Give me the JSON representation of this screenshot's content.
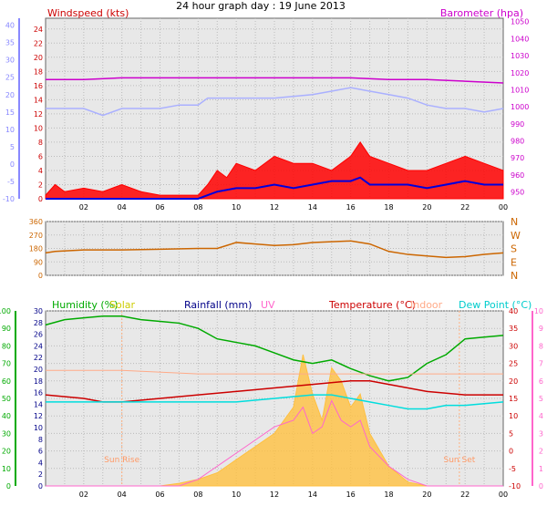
{
  "title": "24 hour graph day : 19 June 2013",
  "x_ticks": [
    "02",
    "04",
    "06",
    "08",
    "10",
    "12",
    "14",
    "16",
    "18",
    "20",
    "22",
    "00"
  ],
  "colors": {
    "wind": "#ff0000",
    "gust_avg": "#0000dd",
    "baro": "#cc00cc",
    "temp_top": "#aab0ff",
    "direction": "#cc6600",
    "humidity": "#00aa00",
    "solar": "#ffc040",
    "rain": "#000088",
    "uv": "#ff66cc",
    "temperature": "#cc0000",
    "indoor": "#ffaa88",
    "dewpoint": "#00dddd",
    "plot_bg": "#e8e8e8"
  },
  "chart_data": [
    {
      "type": "line",
      "panel": "wind-baro",
      "left_axis": {
        "label": "Windspeed (kts)",
        "ticks": [
          24,
          22,
          20,
          18,
          16,
          14,
          12,
          10,
          8,
          6,
          4,
          2,
          0
        ]
      },
      "far_left_axis": {
        "ticks": [
          40,
          35,
          30,
          25,
          20,
          15,
          10,
          5,
          0,
          -5,
          -10
        ]
      },
      "right_axis": {
        "label": "Barometer (hpa)",
        "ticks": [
          1050,
          1040,
          1030,
          1020,
          1010,
          1000,
          990,
          980,
          970,
          960,
          950
        ]
      },
      "series": [
        {
          "key": "baro",
          "axis": "right",
          "x": [
            0,
            2,
            4,
            6,
            8,
            10,
            12,
            14,
            16,
            18,
            20,
            22,
            24
          ],
          "y": [
            1016,
            1016,
            1017,
            1017,
            1017,
            1017,
            1017,
            1017,
            1017,
            1016,
            1016,
            1015,
            1014
          ]
        },
        {
          "key": "temp_top",
          "axis": "far_left",
          "x": [
            0,
            2,
            3,
            4,
            5,
            6,
            7,
            8,
            8.5,
            10,
            12,
            14,
            15,
            16,
            17,
            18,
            19,
            20,
            21,
            22,
            23,
            24
          ],
          "y": [
            16,
            16,
            14,
            16,
            16,
            16,
            17,
            17,
            19,
            19,
            19,
            20,
            21,
            22,
            21,
            20,
            19,
            17,
            16,
            16,
            15,
            16
          ]
        },
        {
          "key": "wind",
          "axis": "left",
          "x": [
            0,
            0.5,
            1,
            2,
            3,
            4,
            5,
            6,
            7,
            8,
            8.5,
            9,
            9.5,
            10,
            11,
            12,
            13,
            14,
            15,
            16,
            16.5,
            17,
            18,
            19,
            20,
            21,
            22,
            23,
            24
          ],
          "y": [
            0.5,
            2,
            1,
            1.5,
            1,
            2,
            1,
            0.5,
            0.5,
            0.5,
            2,
            4,
            3,
            5,
            4,
            6,
            5,
            5,
            4,
            6,
            8,
            6,
            5,
            4,
            4,
            5,
            6,
            5,
            4
          ]
        },
        {
          "key": "gust_avg",
          "axis": "left",
          "x": [
            0,
            2,
            4,
            6,
            7,
            7.5,
            8,
            8.5,
            9,
            10,
            11,
            12,
            13,
            14,
            15,
            16,
            16.5,
            17,
            18,
            19,
            20,
            21,
            22,
            23,
            24
          ],
          "y": [
            0,
            0,
            0,
            0,
            0,
            0,
            0,
            0.5,
            1,
            1.5,
            1.5,
            2,
            1.5,
            2,
            2.5,
            2.5,
            3,
            2,
            2,
            2,
            1.5,
            2,
            2.5,
            2,
            2
          ]
        }
      ]
    },
    {
      "type": "line",
      "panel": "direction",
      "left_axis": {
        "ticks": [
          360,
          270,
          180,
          90,
          0
        ]
      },
      "right_axis": {
        "ticks": [
          "N",
          "W",
          "S",
          "E",
          "N"
        ]
      },
      "series": [
        {
          "key": "direction",
          "x": [
            0,
            0.5,
            2,
            4,
            6,
            8,
            9,
            9.5,
            10,
            11,
            12,
            13,
            14,
            15,
            16,
            17,
            18,
            19,
            20,
            21,
            22,
            23,
            24
          ],
          "y": [
            150,
            160,
            170,
            170,
            175,
            180,
            180,
            200,
            220,
            210,
            200,
            205,
            220,
            225,
            230,
            210,
            160,
            140,
            130,
            120,
            125,
            140,
            150
          ]
        }
      ]
    },
    {
      "type": "line",
      "panel": "humidity-temp",
      "legend": [
        "Humidity (%)",
        "Solar",
        "Rainfall (mm)",
        "UV",
        "Temperature (°C)",
        "Indoor",
        "Dew Point (°C)"
      ],
      "left_axis_humidity": {
        "ticks": [
          100,
          90,
          80,
          70,
          60,
          50,
          40,
          30,
          20,
          10,
          0
        ]
      },
      "left_axis_rain": {
        "ticks": [
          30,
          28,
          26,
          24,
          22,
          20,
          18,
          16,
          14,
          12,
          10,
          8,
          6,
          4,
          2,
          0
        ]
      },
      "right_axis_temp": {
        "ticks": [
          40,
          35,
          30,
          25,
          20,
          15,
          10,
          5,
          0,
          -5,
          -10
        ]
      },
      "far_right_axis": {
        "ticks": [
          10,
          9,
          8,
          7,
          6,
          5,
          4,
          3,
          2,
          1,
          0
        ]
      },
      "annotations": [
        "Sun Rise",
        "Sun Set"
      ],
      "series": [
        {
          "key": "humidity",
          "x": [
            0,
            1,
            2,
            3,
            4,
            5,
            6,
            7,
            8,
            9,
            10,
            11,
            12,
            13,
            14,
            15,
            16,
            17,
            18,
            19,
            20,
            21,
            22,
            23,
            24
          ],
          "y": [
            92,
            95,
            96,
            97,
            97,
            95,
            94,
            93,
            90,
            84,
            82,
            80,
            76,
            72,
            70,
            72,
            67,
            63,
            60,
            62,
            70,
            75,
            84,
            85,
            86
          ]
        },
        {
          "key": "indoor",
          "x": [
            0,
            4,
            8,
            12,
            16,
            20,
            24
          ],
          "y": [
            23,
            23,
            22,
            22,
            22,
            22,
            22
          ]
        },
        {
          "key": "temperature",
          "x": [
            0,
            2,
            3,
            4,
            6,
            8,
            10,
            12,
            14,
            16,
            17,
            18,
            19,
            20,
            22,
            24
          ],
          "y": [
            16,
            15,
            14,
            14,
            15,
            16,
            17,
            18,
            19,
            20,
            20,
            19,
            18,
            17,
            16,
            16
          ]
        },
        {
          "key": "dewpoint",
          "x": [
            0,
            2,
            4,
            6,
            8,
            10,
            12,
            14,
            15,
            16,
            17,
            18,
            19,
            20,
            21,
            22,
            24
          ],
          "y": [
            14,
            14,
            14,
            14,
            14,
            14,
            15,
            16,
            16,
            15,
            14,
            13,
            12,
            12,
            13,
            13,
            14
          ]
        },
        {
          "key": "solar",
          "x": [
            0,
            4,
            6,
            7,
            8,
            9,
            10,
            11,
            12,
            13,
            13.5,
            14,
            14.5,
            15,
            15.5,
            16,
            16.5,
            17,
            18,
            19,
            20,
            24
          ],
          "y": [
            0,
            0,
            0,
            0.2,
            0.5,
            1,
            2,
            3,
            4,
            6,
            10,
            7,
            5,
            9,
            8,
            6,
            7,
            4,
            1.5,
            0.3,
            0,
            0
          ]
        },
        {
          "key": "uv",
          "x": [
            0,
            4,
            6,
            7,
            8,
            9,
            10,
            11,
            12,
            13,
            13.5,
            14,
            14.5,
            15,
            15.5,
            16,
            16.5,
            17,
            18,
            19,
            20,
            24
          ],
          "y": [
            0,
            0,
            0,
            0,
            0.5,
            1.5,
            2.5,
            3.5,
            4.5,
            5,
            6,
            4,
            4.5,
            6.5,
            5,
            4.5,
            5,
            3,
            1.5,
            0.5,
            0,
            0
          ]
        }
      ]
    }
  ]
}
